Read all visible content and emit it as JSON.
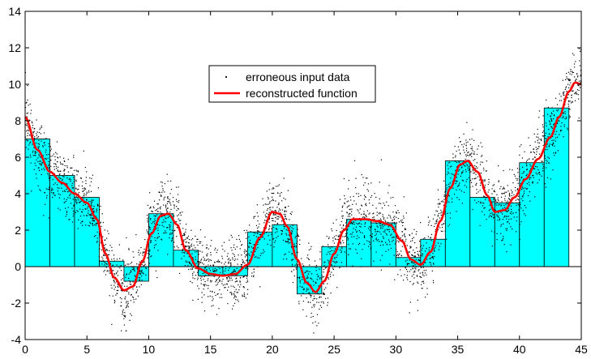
{
  "chart_data": {
    "type": "bar",
    "title": "",
    "xlabel": "",
    "ylabel": "",
    "xlim": [
      0,
      45
    ],
    "ylim": [
      -4,
      14
    ],
    "grid": false,
    "legend_position": "top-center",
    "x_ticks": [
      0,
      5,
      10,
      15,
      20,
      25,
      30,
      35,
      40,
      45
    ],
    "y_ticks": [
      -4,
      -2,
      0,
      2,
      4,
      6,
      8,
      10,
      12,
      14
    ],
    "bar_width": 2,
    "bar_color": "#00ffff",
    "bars": [
      {
        "x0": 0,
        "value": 7.0
      },
      {
        "x0": 2,
        "value": 5.0
      },
      {
        "x0": 4,
        "value": 3.8
      },
      {
        "x0": 6,
        "value": 0.3
      },
      {
        "x0": 8,
        "value": -0.8
      },
      {
        "x0": 10,
        "value": 2.9
      },
      {
        "x0": 12,
        "value": 0.9
      },
      {
        "x0": 14,
        "value": -0.5
      },
      {
        "x0": 16,
        "value": -0.5
      },
      {
        "x0": 18,
        "value": 1.9
      },
      {
        "x0": 20,
        "value": 2.3
      },
      {
        "x0": 22,
        "value": -1.5
      },
      {
        "x0": 24,
        "value": 1.1
      },
      {
        "x0": 26,
        "value": 2.6
      },
      {
        "x0": 28,
        "value": 2.4
      },
      {
        "x0": 30,
        "value": 0.5
      },
      {
        "x0": 32,
        "value": 1.5
      },
      {
        "x0": 34,
        "value": 5.8
      },
      {
        "x0": 36,
        "value": 3.8
      },
      {
        "x0": 38,
        "value": 3.5
      },
      {
        "x0": 40,
        "value": 5.7
      },
      {
        "x0": 42,
        "value": 8.7
      }
    ],
    "series": [
      {
        "name": "erroneous input data",
        "kind": "scatter",
        "color": "#000000",
        "spread": 0.9
      },
      {
        "name": "reconstructed function",
        "kind": "line",
        "color": "#ff0000",
        "x": [
          0,
          1,
          2,
          3,
          4,
          5,
          5.8,
          6.5,
          7.2,
          8.0,
          8.7,
          9.5,
          10.2,
          11.0,
          11.6,
          12.3,
          13.0,
          14.0,
          15.0,
          16.0,
          17.0,
          18.0,
          19.0,
          20.0,
          20.6,
          21.2,
          22.0,
          22.8,
          23.5,
          24.2,
          25.0,
          25.8,
          26.5,
          27.5,
          28.5,
          29.5,
          30.5,
          31.2,
          32.0,
          32.8,
          33.6,
          34.4,
          35.2,
          35.8,
          36.6,
          37.4,
          38.0,
          38.8,
          39.6,
          40.5,
          41.5,
          42.5,
          43.2,
          44.0,
          44.5,
          45.0
        ],
        "y": [
          8.2,
          6.4,
          5.2,
          4.6,
          4.0,
          3.5,
          2.6,
          0.7,
          -0.6,
          -1.3,
          -1.1,
          0.3,
          1.8,
          2.8,
          2.9,
          2.3,
          0.9,
          -0.1,
          -0.4,
          -0.5,
          -0.4,
          0.1,
          1.6,
          3.0,
          2.9,
          2.2,
          0.4,
          -0.9,
          -1.4,
          -0.8,
          0.7,
          2.0,
          2.6,
          2.6,
          2.5,
          2.3,
          1.4,
          0.4,
          0.1,
          0.8,
          2.5,
          4.3,
          5.6,
          5.8,
          5.2,
          3.9,
          3.0,
          3.1,
          3.8,
          4.8,
          5.9,
          7.1,
          8.2,
          9.6,
          10.1,
          10.0
        ]
      }
    ]
  }
}
